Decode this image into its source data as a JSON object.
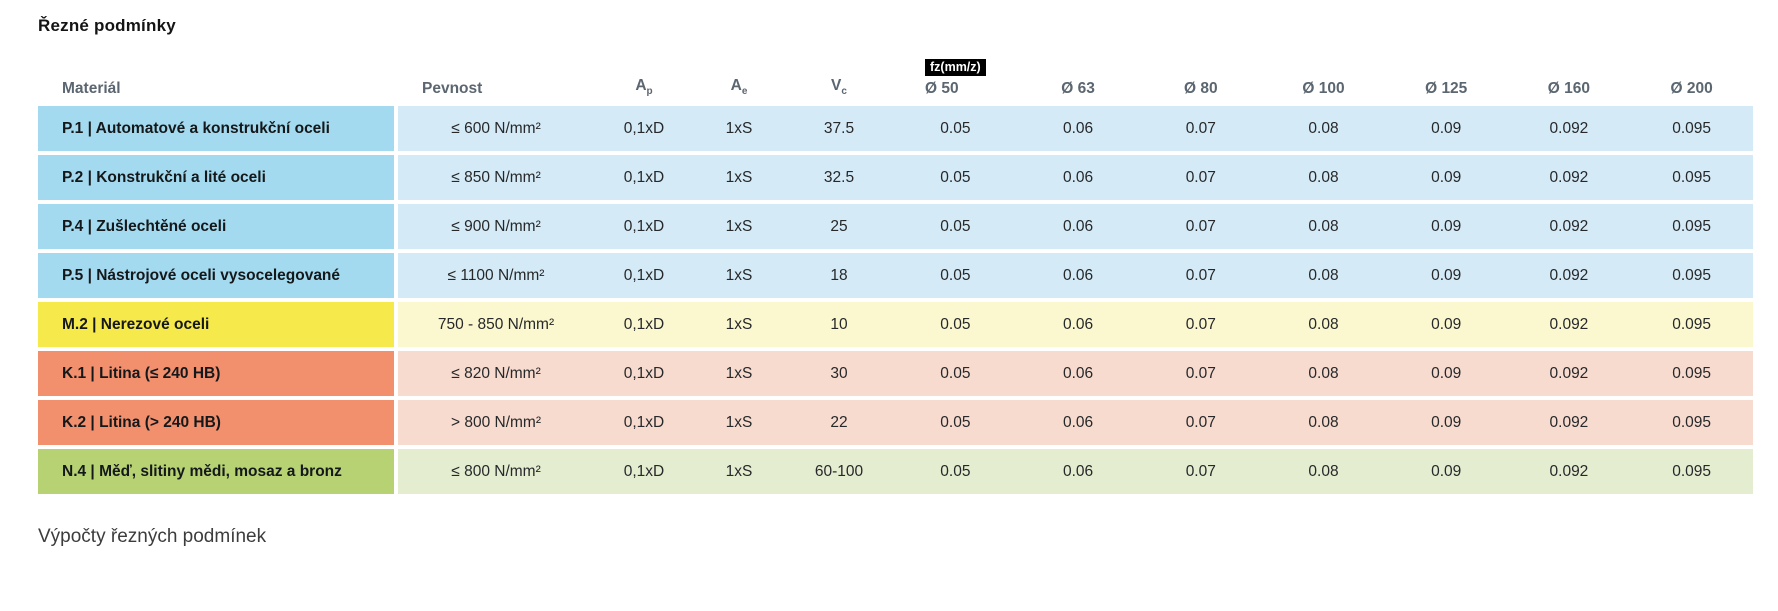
{
  "page": {
    "title": "Řezné podmínky",
    "section_footer": "Výpočty řezných podmínek"
  },
  "table": {
    "headers": {
      "material": "Materiál",
      "strength": "Pevnost",
      "ap_main": "A",
      "ap_sub": "p",
      "ae_main": "A",
      "ae_sub": "e",
      "vc_main": "V",
      "vc_sub": "c",
      "fz_badge": "fz(mm/z)",
      "diameters": [
        "Ø 50",
        "Ø 63",
        "Ø 80",
        "Ø 100",
        "Ø 125",
        "Ø 160",
        "Ø 200"
      ]
    },
    "rows": [
      {
        "material": "P.1 | Automatové a konstrukční oceli",
        "strength": "≤ 600 N/mm²",
        "ap": "0,1xD",
        "ae": "1xS",
        "vc": "37.5",
        "fz": [
          "0.05",
          "0.06",
          "0.07",
          "0.08",
          "0.09",
          "0.092",
          "0.095"
        ],
        "color_dark": "#a3daef",
        "color_light": "#d4eaf6"
      },
      {
        "material": "P.2 | Konstrukční a lité oceli",
        "strength": "≤ 850 N/mm²",
        "ap": "0,1xD",
        "ae": "1xS",
        "vc": "32.5",
        "fz": [
          "0.05",
          "0.06",
          "0.07",
          "0.08",
          "0.09",
          "0.092",
          "0.095"
        ],
        "color_dark": "#a3daef",
        "color_light": "#d4eaf6"
      },
      {
        "material": "P.4 | Zušlechtěné oceli",
        "strength": "≤ 900 N/mm²",
        "ap": "0,1xD",
        "ae": "1xS",
        "vc": "25",
        "fz": [
          "0.05",
          "0.06",
          "0.07",
          "0.08",
          "0.09",
          "0.092",
          "0.095"
        ],
        "color_dark": "#a3daef",
        "color_light": "#d4eaf6"
      },
      {
        "material": "P.5 | Nástrojové oceli vysocelegované",
        "strength": "≤ 1100 N/mm²",
        "ap": "0,1xD",
        "ae": "1xS",
        "vc": "18",
        "fz": [
          "0.05",
          "0.06",
          "0.07",
          "0.08",
          "0.09",
          "0.092",
          "0.095"
        ],
        "color_dark": "#a3daef",
        "color_light": "#d4eaf6"
      },
      {
        "material": "M.2 | Nerezové oceli",
        "strength": "750 - 850 N/mm²",
        "ap": "0,1xD",
        "ae": "1xS",
        "vc": "10",
        "fz": [
          "0.05",
          "0.06",
          "0.07",
          "0.08",
          "0.09",
          "0.092",
          "0.095"
        ],
        "color_dark": "#f6e94b",
        "color_light": "#fbf8d0"
      },
      {
        "material": "K.1 | Litina (≤ 240 HB)",
        "strength": "≤ 820 N/mm²",
        "ap": "0,1xD",
        "ae": "1xS",
        "vc": "30",
        "fz": [
          "0.05",
          "0.06",
          "0.07",
          "0.08",
          "0.09",
          "0.092",
          "0.095"
        ],
        "color_dark": "#f2906e",
        "color_light": "#f8dbcf"
      },
      {
        "material": "K.2 | Litina (> 240 HB)",
        "strength": "> 800 N/mm²",
        "ap": "0,1xD",
        "ae": "1xS",
        "vc": "22",
        "fz": [
          "0.05",
          "0.06",
          "0.07",
          "0.08",
          "0.09",
          "0.092",
          "0.095"
        ],
        "color_dark": "#f2906e",
        "color_light": "#f8dbcf"
      },
      {
        "material": "N.4 | Měď, slitiny mědi, mosaz a bronz",
        "strength": "≤ 800 N/mm²",
        "ap": "0,1xD",
        "ae": "1xS",
        "vc": "60-100",
        "fz": [
          "0.05",
          "0.06",
          "0.07",
          "0.08",
          "0.09",
          "0.092",
          "0.095"
        ],
        "color_dark": "#b6d273",
        "color_light": "#e5edd0"
      }
    ]
  },
  "colors": {
    "badge_bg": "#000000",
    "badge_text": "#ffffff",
    "header_text": "#5b6670",
    "group_steel_dark": "#a3daef",
    "group_steel_light": "#d4eaf6",
    "group_stainless_dark": "#f6e94b",
    "group_stainless_light": "#fbf8d0",
    "group_castiron_dark": "#f2906e",
    "group_castiron_light": "#f8dbcf",
    "group_nonferrous_dark": "#b6d273",
    "group_nonferrous_light": "#e5edd0"
  }
}
